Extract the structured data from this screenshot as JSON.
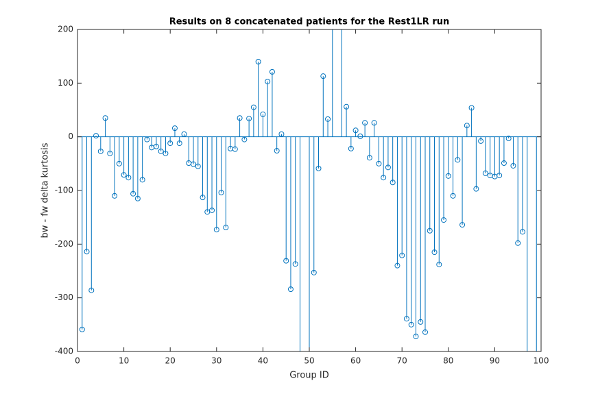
{
  "chart_data": {
    "type": "stem",
    "title": "Results on 8 concatenated patients for the Rest1LR run",
    "x_label": "Group ID",
    "y_label": "bw - fw delta kurtosis",
    "x": [
      1,
      2,
      3,
      4,
      5,
      6,
      7,
      8,
      9,
      10,
      11,
      12,
      13,
      14,
      15,
      16,
      17,
      18,
      19,
      20,
      21,
      22,
      23,
      24,
      25,
      26,
      27,
      28,
      29,
      30,
      31,
      32,
      33,
      34,
      35,
      36,
      37,
      38,
      39,
      40,
      41,
      42,
      43,
      44,
      45,
      46,
      47,
      48,
      49,
      50,
      51,
      52,
      53,
      54,
      55,
      56,
      57,
      58,
      59,
      60,
      61,
      62,
      63,
      64,
      65,
      66,
      67,
      68,
      69,
      70,
      71,
      72,
      73,
      74,
      75,
      76,
      77,
      78,
      79,
      80,
      81,
      82,
      83,
      84,
      85,
      86,
      87,
      88,
      89,
      90,
      91,
      92,
      93,
      94,
      95,
      96,
      97,
      98,
      99,
      100
    ],
    "series": [
      {
        "name": "bw - fw delta kurtosis",
        "color": "#0072bd",
        "values": [
          -359,
          -214,
          -286,
          2,
          -27,
          35,
          -31,
          -110,
          -50,
          -71,
          -76,
          -106,
          -115,
          -80,
          -5,
          -20,
          -18,
          -27,
          -31,
          -12,
          16,
          -12,
          5,
          -49,
          -51,
          -55,
          -113,
          -140,
          -137,
          -173,
          -104,
          -169,
          -22,
          -23,
          35,
          -5,
          34,
          55,
          140,
          42,
          103,
          121,
          -26,
          5,
          -231,
          -284,
          -237,
          -450,
          null,
          -450,
          -253,
          -59,
          113,
          33,
          250,
          null,
          250,
          56,
          -22,
          12,
          1,
          26,
          -39,
          26,
          -50,
          -76,
          -57,
          -85,
          -240,
          -221,
          -339,
          -350,
          -372,
          -345,
          -364,
          -175,
          -215,
          -238,
          -155,
          -73,
          -110,
          -43,
          -164,
          21,
          54,
          -97,
          -8,
          -68,
          -72,
          -74,
          -72,
          -49,
          -3,
          -54,
          -198,
          -177,
          -450,
          null,
          -450,
          null
        ]
      }
    ],
    "xlim": [
      0,
      100
    ],
    "xticks": [
      0,
      10,
      20,
      30,
      40,
      50,
      60,
      70,
      80,
      90,
      100
    ],
    "ylim": [
      -400,
      200
    ],
    "yticks": [
      -400,
      -300,
      -200,
      -100,
      0,
      100,
      200
    ]
  }
}
